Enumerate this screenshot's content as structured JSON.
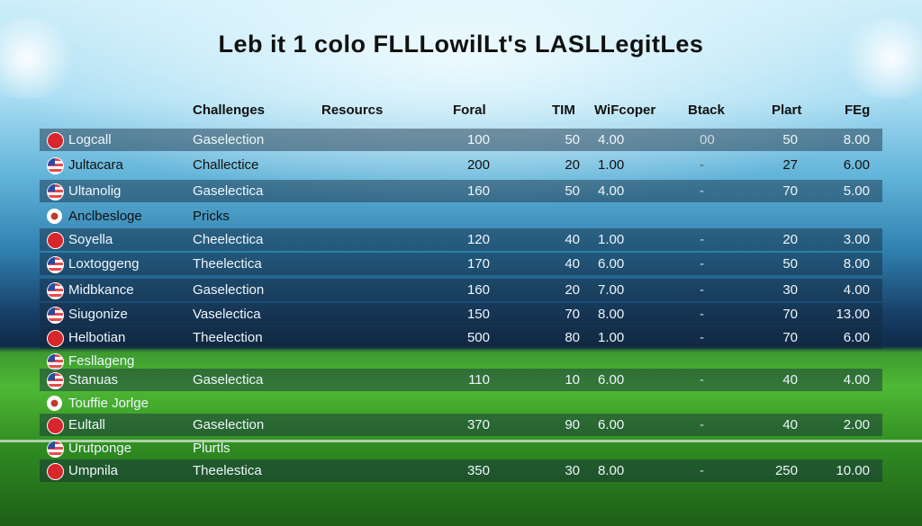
{
  "title": "Leb it 1 colo FLLLowilLt's LASLLegitLes",
  "headers": [
    "Challenges",
    "Resourcs",
    "Foral",
    "TIM",
    "WiFcoper",
    "Btack",
    "Plart",
    "FEg"
  ],
  "colors": {
    "band": "#1e3a55",
    "field": "#4fb935",
    "sky": "#a6dcf2"
  },
  "rows": [
    {
      "icon": "shield-icon",
      "name": "Logcall",
      "challenge": "Gaselection",
      "foral": "100",
      "tim": "50",
      "wif": "4.00",
      "btack": "00",
      "plart": "50",
      "feg": "8.00",
      "band": true
    },
    {
      "icon": "flag-icon",
      "name": "Jultacara",
      "challenge": "Challectice",
      "foral": "200",
      "tim": "20",
      "wif": "1.00",
      "btack": "-",
      "plart": "27",
      "feg": "6.00",
      "band": false,
      "dark": true
    },
    {
      "icon": "flag-icon",
      "name": "Ultanolig",
      "challenge": "Gaselectica",
      "foral": "160",
      "tim": "50",
      "wif": "4.00",
      "btack": "-",
      "plart": "70",
      "feg": "5.00",
      "band": true
    },
    {
      "icon": "ball-icon",
      "name": "Anclbesloge",
      "challenge": "Pricks",
      "band": false,
      "dark": true
    },
    {
      "icon": "shield-icon",
      "name": "Soyella",
      "challenge": "Cheelectica",
      "foral": "120",
      "tim": "40",
      "wif": "1.00",
      "btack": "-",
      "plart": "20",
      "feg": "3.00",
      "band": true
    },
    {
      "icon": "flag-icon",
      "name": "Loxtoggeng",
      "challenge": "Theelectica",
      "foral": "170",
      "tim": "40",
      "wif": "6.00",
      "btack": "-",
      "plart": "50",
      "feg": "8.00",
      "band": true
    },
    {
      "icon": "flag-icon",
      "name": "Midbkance",
      "challenge": "Gaselection",
      "foral": "160",
      "tim": "20",
      "wif": "7.00",
      "btack": "-",
      "plart": "30",
      "feg": "4.00",
      "band": true
    },
    {
      "icon": "flag-icon",
      "name": "Siugonize",
      "challenge": "Vaselectica",
      "foral": "150",
      "tim": "70",
      "wif": "8.00",
      "btack": "-",
      "plart": "70",
      "feg": "13.00",
      "band": true
    },
    {
      "icon": "shield-icon",
      "name": "Helbotian",
      "challenge": "Theelection",
      "foral": "500",
      "tim": "80",
      "wif": "1.00",
      "btack": "-",
      "plart": "70",
      "feg": "6.00",
      "band": true
    },
    {
      "icon": "flag-icon",
      "name": "Fesllageng",
      "band": false
    },
    {
      "icon": "flag-icon",
      "name": "Stanuas",
      "challenge": "Gaselectica",
      "foral": "110",
      "tim": "10",
      "wif": "6.00",
      "btack": "-",
      "plart": "40",
      "feg": "4.00",
      "band": true
    },
    {
      "icon": "ball-icon",
      "name": "Touffie Jorlge",
      "band": false
    },
    {
      "icon": "shield-icon",
      "name": "Eultall",
      "challenge": "Gaselection",
      "foral": "370",
      "tim": "90",
      "wif": "6.00",
      "btack": "-",
      "plart": "40",
      "feg": "2.00",
      "band": true
    },
    {
      "icon": "flag-icon",
      "name": "Urutponge",
      "challenge": "Plurtls",
      "band": false
    },
    {
      "icon": "shield-icon",
      "name": "Umpnila",
      "challenge": "Theelestica",
      "foral": "350",
      "tim": "30",
      "wif": "8.00",
      "btack": "-",
      "plart": "250",
      "feg": "10.00",
      "band": true
    }
  ]
}
